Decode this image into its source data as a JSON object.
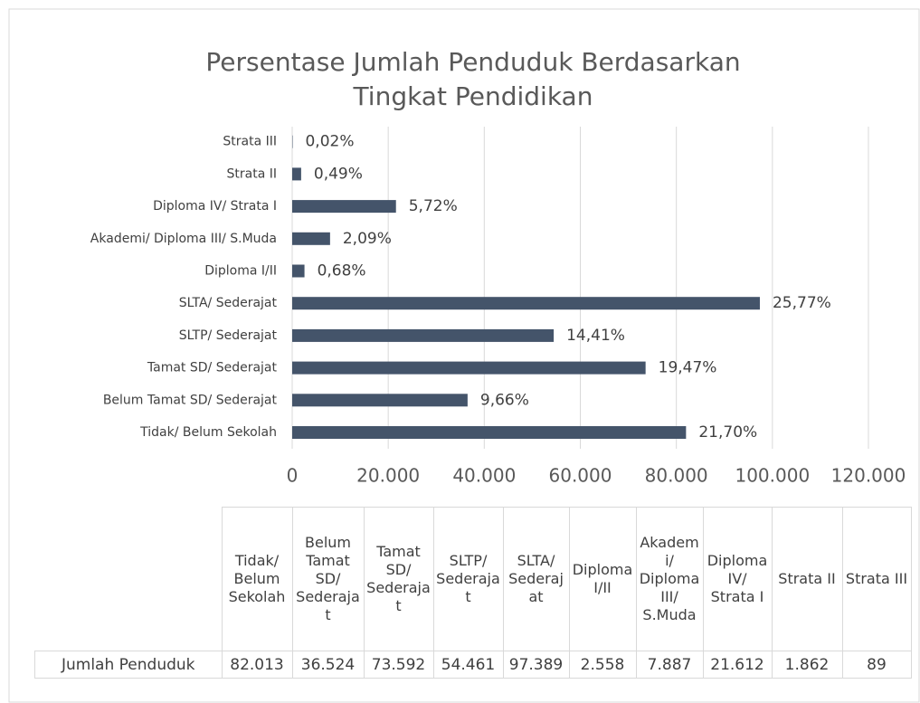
{
  "chart_data": {
    "type": "hbar",
    "title": "Persentase Jumlah Penduduk Berdasarkan Tingkat Pendidikan",
    "categories": [
      "Tidak/ Belum Sekolah",
      "Belum Tamat SD/ Sederajat",
      "Tamat SD/ Sederajat",
      "SLTP/ Sederajat",
      "SLTA/ Sederajat",
      "Diploma I/II",
      "Akademi/ Diploma III/ S.Muda",
      "Diploma IV/ Strata I",
      "Strata II",
      "Strata III"
    ],
    "series": [
      {
        "name": "Jumlah Penduduk",
        "color": "#44546a",
        "values": [
          82013,
          36524,
          73592,
          54461,
          97389,
          2558,
          7887,
          21612,
          1862,
          89
        ],
        "value_labels": [
          "82.013",
          "36.524",
          "73.592",
          "54.461",
          "97.389",
          "2.558",
          "7.887",
          "21.612",
          "1.862",
          "89"
        ]
      }
    ],
    "data_labels": [
      "21,70%",
      "9,66%",
      "19,47%",
      "14,41%",
      "25,77%",
      "0,68%",
      "2,09%",
      "5,72%",
      "0,49%",
      "0,02%"
    ],
    "xlim": [
      0,
      120000
    ],
    "xticks": [
      0,
      {
        "value": 20000,
        "label": "20.000"
      },
      {
        "value": 40000,
        "label": "40.000"
      },
      {
        "value": 60000,
        "label": "60.000"
      },
      {
        "value": 80000,
        "label": "80.000"
      },
      {
        "value": 100000,
        "label": "100.000"
      },
      {
        "value": 120000,
        "label": "120.000"
      }
    ],
    "grid": true
  }
}
